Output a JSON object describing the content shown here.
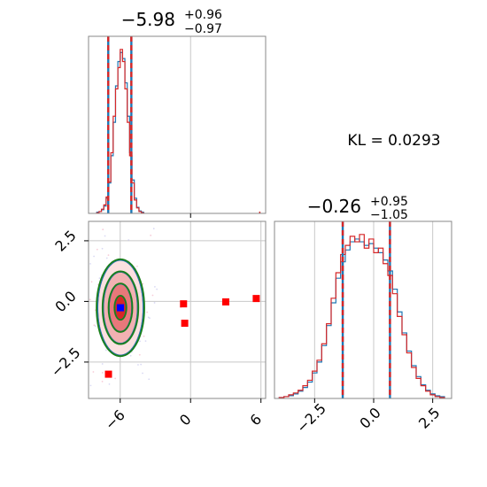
{
  "colors": {
    "blue": "#1f77b4",
    "red": "#d62728",
    "green": "#1a7f1a",
    "grid": "#c8c8c8",
    "frame": "#888888",
    "marker_red": "#ff0000",
    "marker_blue": "#0000ff"
  },
  "chart_data": {
    "type": "corner",
    "kl_label": "KL = 0.0293",
    "panels": {
      "param1_hist": {
        "type": "histogram",
        "title": {
          "main": "−5.98",
          "sup": "+0.96",
          "sub": "−0.97"
        },
        "xlim": [
          -8.7,
          6.4
        ],
        "grid_x": [
          0
        ],
        "quantile_lines": [
          -7.02,
          -5.05
        ],
        "bin_edges": [
          -8.0,
          -7.8,
          -7.6,
          -7.4,
          -7.2,
          -7.0,
          -6.8,
          -6.6,
          -6.4,
          -6.2,
          -6.0,
          -5.8,
          -5.6,
          -5.4,
          -5.2,
          -5.0,
          -4.8,
          -4.6,
          -4.4,
          -4.2,
          -4.0
        ],
        "series": [
          {
            "name": "blue",
            "counts": [
              2,
              3,
              6,
              12,
              25,
              50,
              95,
              150,
              210,
              250,
              265,
              255,
              215,
              160,
              100,
              55,
              25,
              10,
              4,
              2
            ]
          },
          {
            "name": "red",
            "counts": [
              1,
              3,
              7,
              14,
              27,
              52,
              100,
              160,
              205,
              240,
              270,
              250,
              205,
              150,
              95,
              50,
              22,
              9,
              3,
              1
            ]
          }
        ],
        "outliers": [
          {
            "x": 5.9,
            "count": 3
          }
        ]
      },
      "param2_hist": {
        "type": "histogram",
        "title": {
          "main": "−0.26",
          "sup": "+0.95",
          "sub": "−1.05"
        },
        "xlim": [
          -4.2,
          3.3
        ],
        "x_ticks": [
          -2.5,
          0.0,
          2.5
        ],
        "x_tick_labels": [
          "−2.5",
          "0.0",
          "2.5"
        ],
        "grid_x": [
          -2.5,
          0.0,
          2.5
        ],
        "quantile_lines": [
          -1.31,
          0.69
        ],
        "bin_edges": [
          -4.0,
          -3.8,
          -3.6,
          -3.4,
          -3.2,
          -3.0,
          -2.8,
          -2.6,
          -2.4,
          -2.2,
          -2.0,
          -1.8,
          -1.6,
          -1.4,
          -1.2,
          -1.0,
          -0.8,
          -0.6,
          -0.4,
          -0.2,
          0.0,
          0.2,
          0.4,
          0.6,
          0.8,
          1.0,
          1.2,
          1.4,
          1.6,
          1.8,
          2.0,
          2.2,
          2.4,
          2.6,
          2.8,
          3.0
        ],
        "series": [
          {
            "name": "blue",
            "counts": [
              1,
              2,
              3,
              5,
              8,
              12,
              18,
              28,
              40,
              58,
              80,
              105,
              132,
              150,
              163,
              172,
              175,
              172,
              168,
              170,
              165,
              160,
              152,
              140,
              120,
              95,
              72,
              52,
              36,
              24,
              15,
              9,
              5,
              3,
              2
            ]
          },
          {
            "name": "red",
            "counts": [
              1,
              2,
              4,
              6,
              9,
              14,
              20,
              30,
              42,
              60,
              82,
              110,
              138,
              158,
              168,
              178,
              172,
              180,
              165,
              175,
              160,
              165,
              148,
              135,
              115,
              90,
              70,
              50,
              34,
              22,
              14,
              8,
              4,
              2,
              1
            ]
          }
        ]
      },
      "joint": {
        "type": "contour",
        "xlim": [
          -8.7,
          6.4
        ],
        "ylim": [
          -4.0,
          3.3
        ],
        "x_ticks": [
          -6,
          0,
          6
        ],
        "x_tick_labels": [
          "−6",
          "0",
          "6"
        ],
        "y_ticks": [
          -2.5,
          0.0,
          2.5
        ],
        "y_tick_labels": [
          "−2.5",
          "0.0",
          "2.5"
        ],
        "grid_x": [
          -6,
          0,
          6
        ],
        "grid_y": [
          -2.5,
          0.0,
          2.5
        ],
        "center": {
          "x": -5.98,
          "y": -0.26
        },
        "levels_sigma": [
          0.5,
          1.0,
          1.5,
          2.0
        ],
        "sigma": {
          "x": 0.97,
          "y": 0.98
        },
        "filled_colors": [
          "#d62728",
          "#e8787a",
          "#f2b1b2",
          "#fbe0e0"
        ],
        "line_series": [
          {
            "name": "blue",
            "sx_scale": 1.0,
            "sy_scale": 1.0
          },
          {
            "name": "green",
            "sx_scale": 1.05,
            "sy_scale": 1.02
          }
        ],
        "red_markers": [
          {
            "x": -0.6,
            "y": -0.1
          },
          {
            "x": -0.5,
            "y": -0.9
          },
          {
            "x": 3.0,
            "y": -0.02
          },
          {
            "x": 5.6,
            "y": 0.12
          },
          {
            "x": -7.0,
            "y": -3.0
          }
        ],
        "blue_marker": {
          "x": -5.98,
          "y": -0.26
        }
      }
    }
  }
}
